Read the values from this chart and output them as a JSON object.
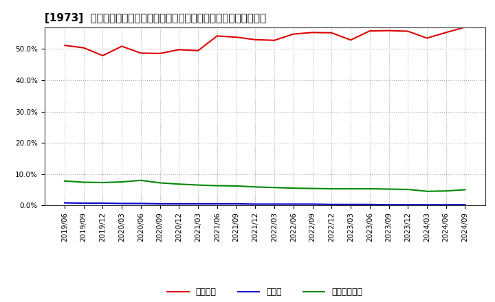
{
  "title": "[1973]  自己資本、のれん、繰延税金資産の総資産に対する比率の推移",
  "x_labels": [
    "2019/06",
    "2019/09",
    "2019/12",
    "2020/03",
    "2020/06",
    "2020/09",
    "2020/12",
    "2021/03",
    "2021/06",
    "2021/09",
    "2021/12",
    "2022/03",
    "2022/06",
    "2022/09",
    "2022/12",
    "2023/03",
    "2023/06",
    "2023/09",
    "2023/12",
    "2024/03",
    "2024/06",
    "2024/09"
  ],
  "jikoshihon": [
    51.2,
    50.4,
    47.9,
    50.9,
    48.7,
    48.6,
    49.8,
    49.5,
    54.2,
    53.8,
    53.0,
    52.8,
    54.8,
    55.3,
    55.2,
    52.9,
    55.8,
    55.9,
    55.7,
    53.5,
    55.3,
    57.0
  ],
  "noren": [
    0.8,
    0.7,
    0.7,
    0.6,
    0.6,
    0.5,
    0.5,
    0.5,
    0.5,
    0.5,
    0.4,
    0.4,
    0.4,
    0.4,
    0.3,
    0.3,
    0.3,
    0.2,
    0.2,
    0.2,
    0.2,
    0.2
  ],
  "kurinobe": [
    7.8,
    7.4,
    7.3,
    7.5,
    8.0,
    7.2,
    6.8,
    6.5,
    6.3,
    6.2,
    5.9,
    5.7,
    5.5,
    5.4,
    5.3,
    5.3,
    5.3,
    5.2,
    5.1,
    4.5,
    4.6,
    5.0
  ],
  "jikoshihon_color": "#dd0000",
  "noren_color": "#0000cc",
  "kurinobe_color": "#008800",
  "background_color": "#ffffff",
  "grid_color": "#999999",
  "ylim": [
    0,
    57
  ],
  "yticks": [
    0,
    10,
    20,
    30,
    40,
    50
  ],
  "legend_labels": [
    "自己資本",
    "のれん",
    "繰延税金資産"
  ],
  "title_fontsize": 11,
  "tick_fontsize": 7.5,
  "legend_fontsize": 9
}
